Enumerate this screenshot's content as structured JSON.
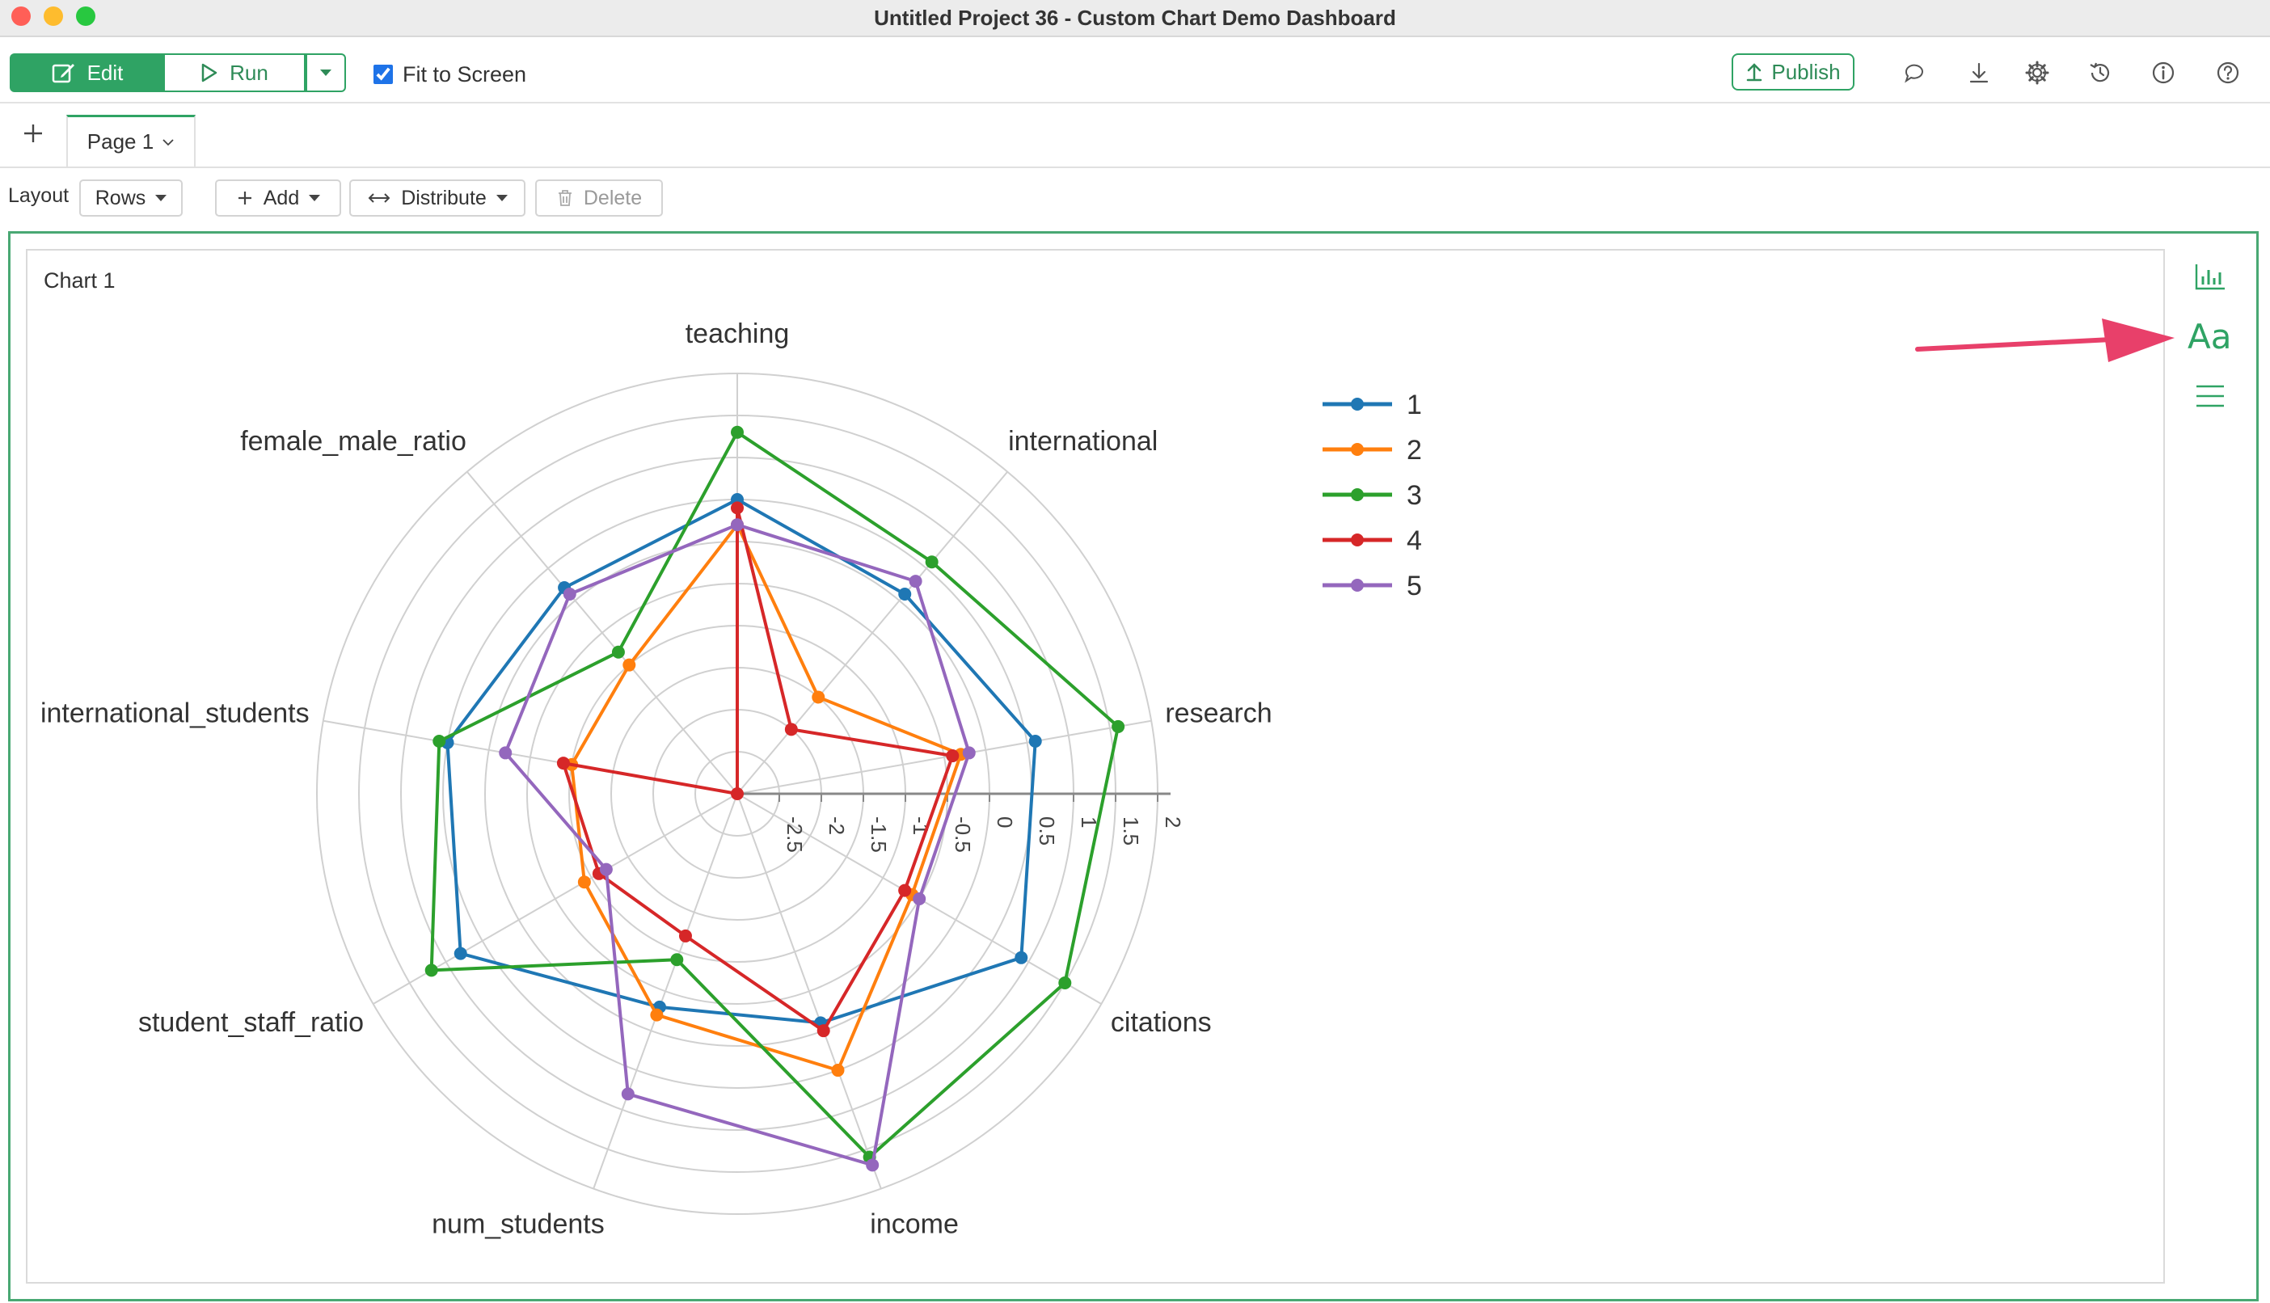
{
  "window": {
    "title": "Untitled Project 36 - Custom Chart Demo Dashboard"
  },
  "toolbar": {
    "edit_label": "Edit",
    "run_label": "Run",
    "fit_to_screen_label": "Fit to Screen",
    "fit_to_screen_checked": true,
    "publish_label": "Publish",
    "icons": [
      "comment-icon",
      "download-icon",
      "gear-icon",
      "history-icon",
      "info-icon",
      "help-icon"
    ]
  },
  "tabs": {
    "page_label": "Page 1"
  },
  "layout_bar": {
    "layout_label": "Layout",
    "rows_label": "Rows",
    "add_label": "Add",
    "distribute_label": "Distribute",
    "delete_label": "Delete"
  },
  "right_panel": {
    "aa_label": "Aa",
    "icons": [
      "bar-chart-icon",
      "font-icon",
      "menu-icon"
    ]
  },
  "colors": {
    "accent": "#2fa364",
    "arrow": "#e8406a"
  },
  "chart_data": {
    "type": "radar",
    "title": "Chart 1",
    "axes": [
      "teaching",
      "international",
      "research",
      "citations",
      "income",
      "num_students",
      "student_staff_ratio",
      "international_students",
      "female_male_ratio"
    ],
    "radial_range": [
      -3,
      2
    ],
    "radial_ticks": [
      "-2.5",
      "-2",
      "-1.5",
      "-1",
      "-0.5",
      "0",
      "0.5",
      "1",
      "1.5",
      "2"
    ],
    "grid": true,
    "legend_position": "top-right",
    "series": [
      {
        "name": "1",
        "color": "#1f77b4",
        "values": [
          0.5,
          0.1,
          0.6,
          0.9,
          -0.1,
          -0.3,
          0.8,
          0.5,
          0.2
        ]
      },
      {
        "name": "2",
        "color": "#ff7f0e",
        "values": [
          0.2,
          -1.5,
          -0.3,
          -0.6,
          0.5,
          -0.2,
          -0.9,
          -1.0,
          -1.0
        ]
      },
      {
        "name": "3",
        "color": "#2ca02c",
        "values": [
          1.3,
          0.6,
          1.6,
          1.5,
          1.6,
          -0.9,
          1.2,
          0.6,
          -0.8
        ]
      },
      {
        "name": "4",
        "color": "#d62728",
        "values": [
          0.4,
          -2.0,
          -0.4,
          -0.7,
          0.0,
          -1.2,
          -1.1,
          -0.9,
          -3.0
        ]
      },
      {
        "name": "5",
        "color": "#9467bd",
        "values": [
          0.2,
          0.3,
          -0.2,
          -0.5,
          1.7,
          0.8,
          -1.2,
          -0.2,
          0.1
        ]
      }
    ]
  }
}
